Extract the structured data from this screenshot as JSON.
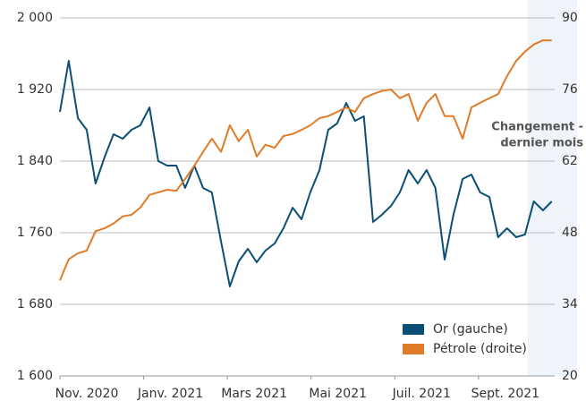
{
  "chart_data": {
    "type": "line",
    "x": [
      0,
      0.21,
      0.43,
      0.64,
      0.85,
      1.07,
      1.28,
      1.5,
      1.71,
      1.92,
      2.14,
      2.35,
      2.56,
      2.78,
      2.99,
      3.21,
      3.42,
      3.63,
      3.85,
      4.06,
      4.27,
      4.49,
      4.7,
      4.91,
      5.13,
      5.34,
      5.56,
      5.77,
      5.98,
      6.2,
      6.41,
      6.62,
      6.84,
      7.05,
      7.26,
      7.48,
      7.69,
      7.91,
      8.12,
      8.33,
      8.55,
      8.76,
      8.97,
      9.19,
      9.4,
      9.62,
      9.83,
      10.04,
      10.26,
      10.47,
      10.68,
      10.9,
      11.11,
      11.32,
      11.54,
      11.75
    ],
    "xlim": [
      0,
      11.82
    ],
    "xticks": [
      {
        "value": 0,
        "label": "Nov. 2020"
      },
      {
        "value": 2,
        "label": "Janv. 2021"
      },
      {
        "value": 4,
        "label": "Mars 2021"
      },
      {
        "value": 6,
        "label": "Mai 2021"
      },
      {
        "value": 8,
        "label": "Juil. 2021"
      },
      {
        "value": 10,
        "label": "Sept. 2021"
      }
    ],
    "ylim": [
      1600,
      2000
    ],
    "yticks": [
      {
        "value": 1600,
        "label": "1 600"
      },
      {
        "value": 1680,
        "label": "1 680"
      },
      {
        "value": 1760,
        "label": "1 760"
      },
      {
        "value": 1840,
        "label": "1 840"
      },
      {
        "value": 1920,
        "label": "1 920"
      },
      {
        "value": 2000,
        "label": "2 000"
      }
    ],
    "y2lim": [
      20,
      90
    ],
    "y2ticks": [
      20,
      34,
      48,
      62,
      76,
      90
    ],
    "grid": true,
    "legend": "lower right",
    "highlight": {
      "x_start": 11.17,
      "label": [
        "Changement -",
        "dernier mois"
      ]
    },
    "series": [
      {
        "name": "Or (gauche)",
        "color": "#0b4f75",
        "values": [
          1895,
          1952,
          1888,
          1875,
          1815,
          1845,
          1870,
          1865,
          1875,
          1880,
          1900,
          1840,
          1835,
          1835,
          1810,
          1835,
          1810,
          1805,
          1750,
          1700,
          1728,
          1742,
          1727,
          1740,
          1748,
          1765,
          1788,
          1775,
          1805,
          1830,
          1875,
          1882,
          1905,
          1885,
          1890,
          1772,
          1780,
          1790,
          1805,
          1830,
          1815,
          1830,
          1810,
          1730,
          1780,
          1820,
          1825,
          1805,
          1800,
          1755,
          1765,
          1755,
          1758,
          1795,
          1785,
          1795
        ]
      },
      {
        "name": "Pétrole (droite)",
        "color": "#e07b28",
        "axis": "y2",
        "values": [
          38.7,
          42.8,
          44.0,
          44.5,
          48.3,
          48.9,
          49.8,
          51.2,
          51.5,
          52.9,
          55.4,
          55.9,
          56.4,
          56.2,
          58.5,
          61.1,
          63.8,
          66.4,
          63.8,
          69.0,
          65.9,
          68.1,
          62.9,
          65.2,
          64.6,
          66.9,
          67.3,
          68.1,
          69.0,
          70.4,
          70.8,
          71.6,
          72.5,
          71.6,
          74.3,
          75.1,
          75.7,
          76.0,
          74.3,
          75.1,
          69.9,
          73.4,
          75.1,
          70.8,
          70.8,
          66.4,
          72.5,
          73.4,
          74.3,
          75.1,
          78.6,
          81.6,
          83.4,
          84.8,
          85.6,
          85.6
        ]
      }
    ]
  }
}
